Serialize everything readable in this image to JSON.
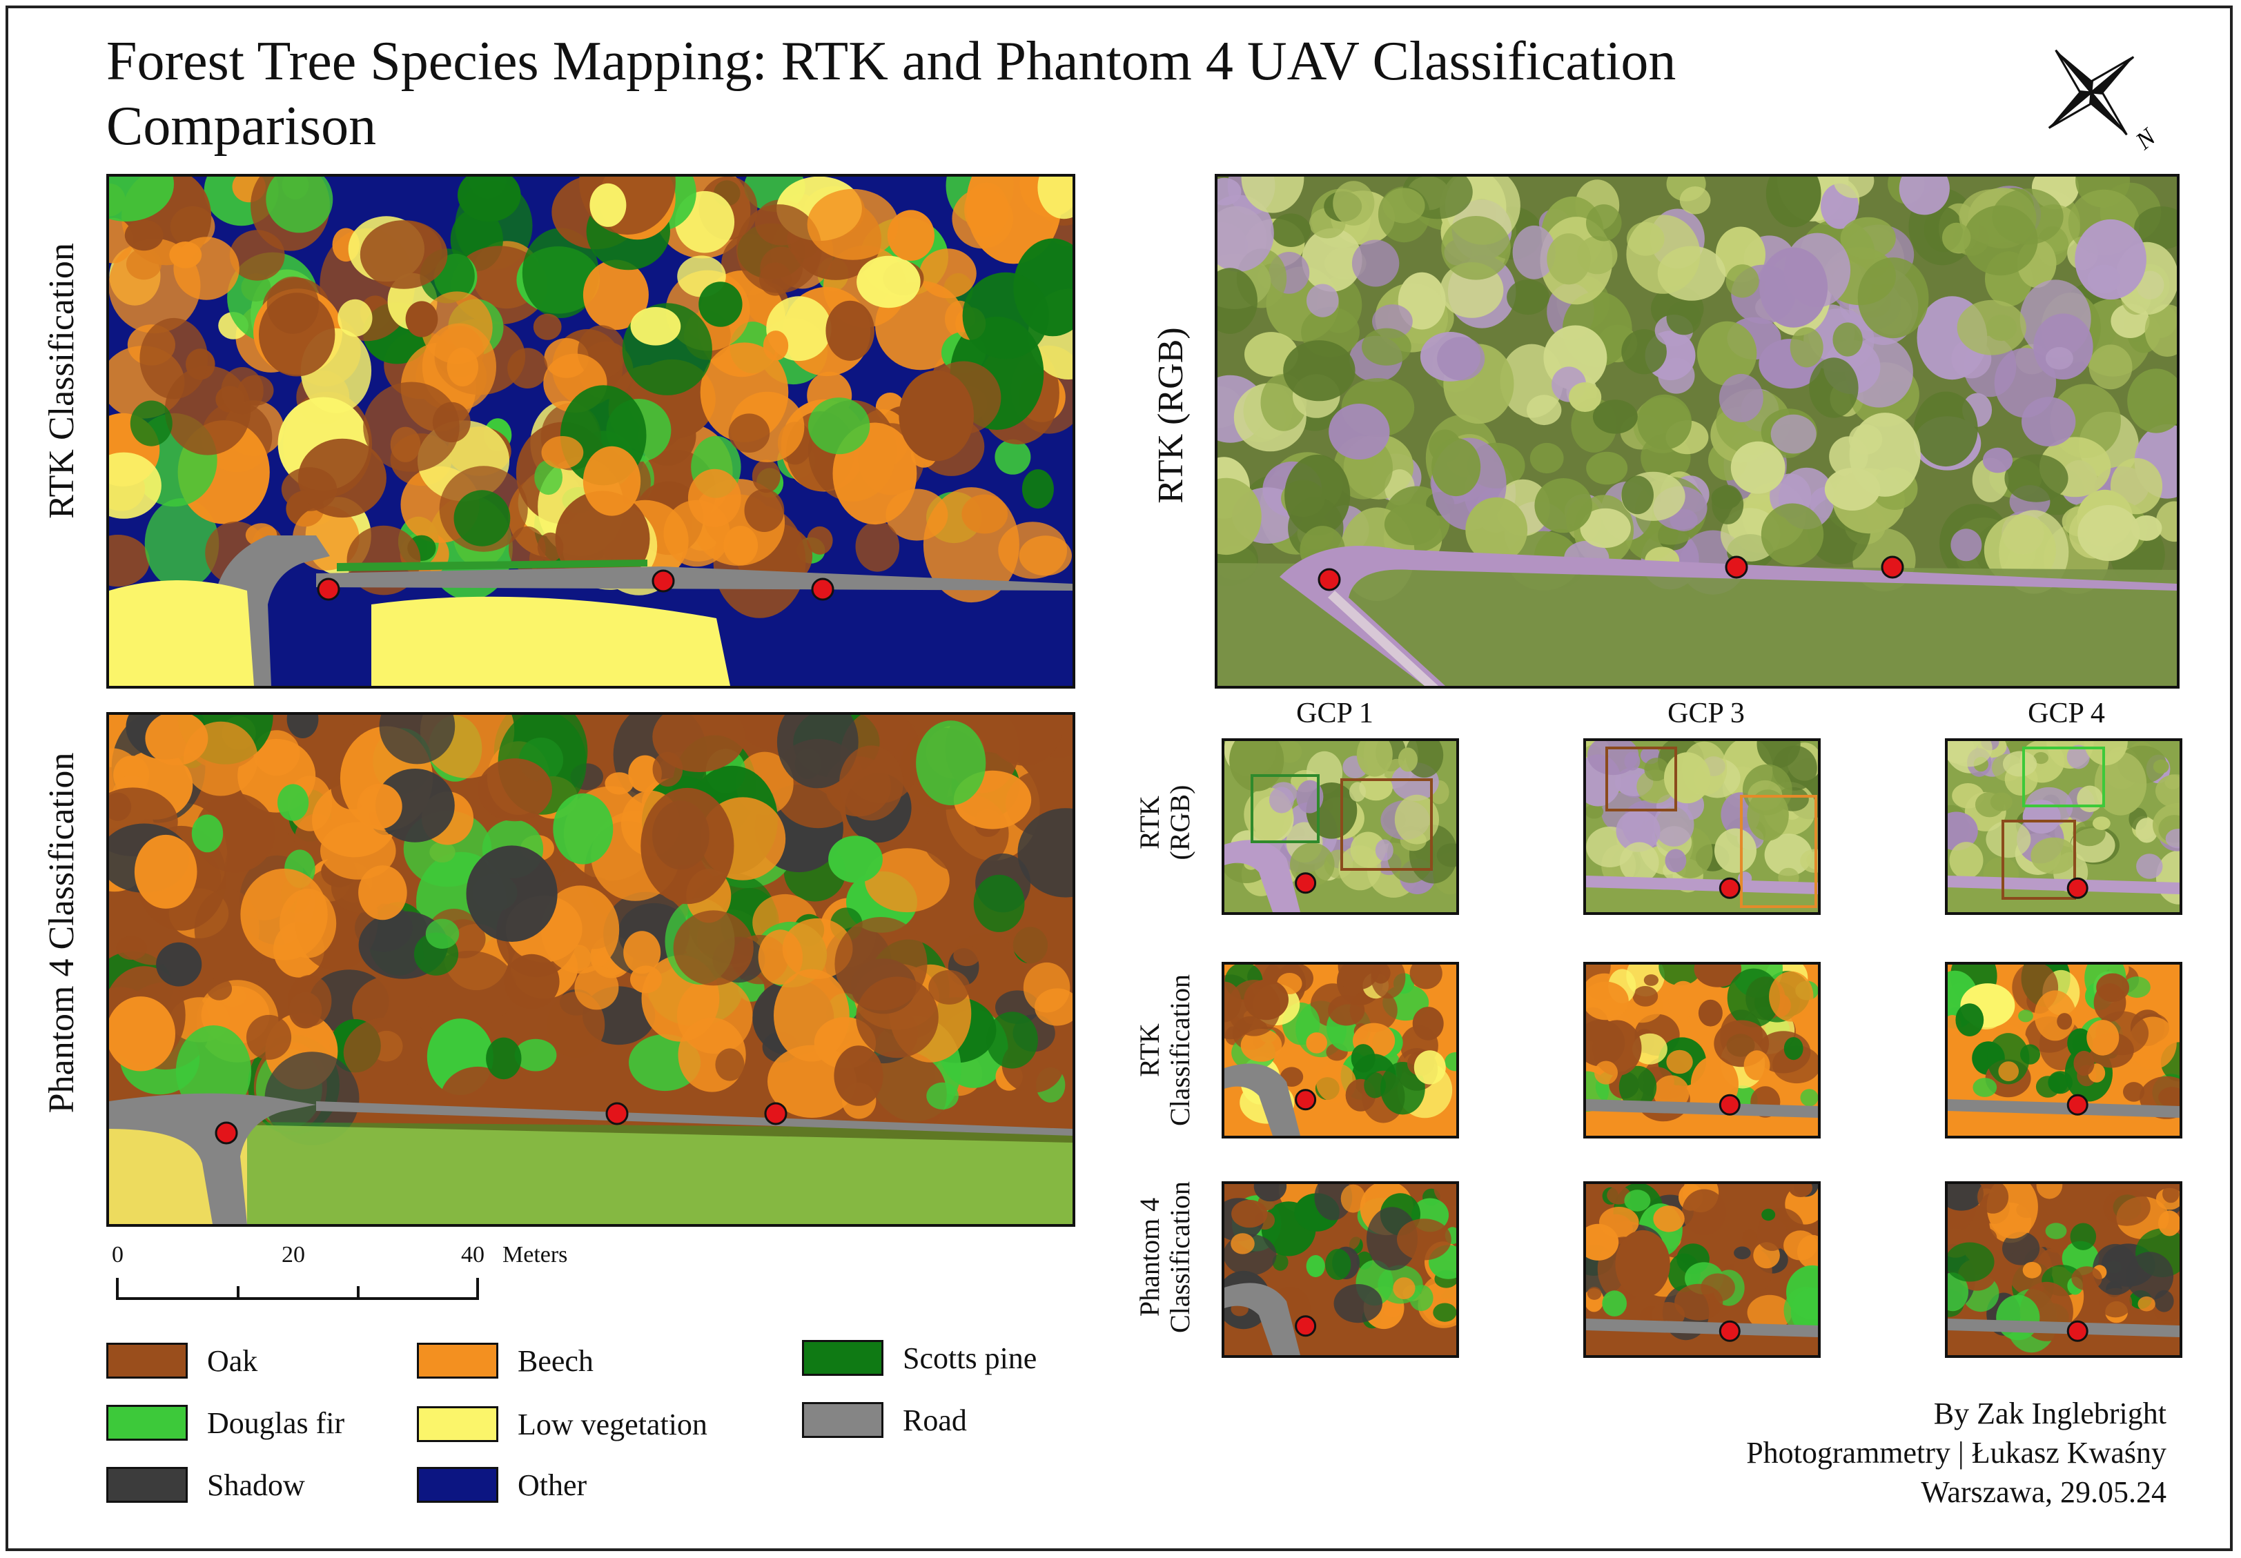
{
  "title": "Forest Tree Species Mapping: RTK and Phantom 4 UAV Classification Comparison",
  "panels": {
    "rtk_classification": "RTK Classification",
    "phantom_classification": "Phantom 4 Classification",
    "rtk_rgb": "RTK (RGB)"
  },
  "gcp_headers": [
    "GCP 1",
    "GCP 3",
    "GCP 4"
  ],
  "row_labels": {
    "rtk_rgb": "RTK\n(RGB)",
    "rtk_class": "RTK\nClassification",
    "phantom_class": "Phantom 4\nClassification"
  },
  "scale_bar": {
    "ticks": [
      "0",
      "20",
      "40"
    ],
    "unit": "Meters"
  },
  "legend": [
    {
      "label": "Oak",
      "color": "#9a4e1c"
    },
    {
      "label": "Beech",
      "color": "#f39020"
    },
    {
      "label": "Scotts pine",
      "color": "#0f7a14"
    },
    {
      "label": "Douglas fir",
      "color": "#3dc93a"
    },
    {
      "label": "Low vegetation",
      "color": "#fbf56a"
    },
    {
      "label": "Road",
      "color": "#858585"
    },
    {
      "label": "Shadow",
      "color": "#3c3c3c"
    },
    {
      "label": "Other",
      "color": "#0c1582"
    }
  ],
  "credits": {
    "author": "By Zak Inglebright",
    "course": "Photogrammetry | Łukasz Kwaśny",
    "place_date": "Warszawa, 29.05.24"
  },
  "north_arrow": {
    "label": "N",
    "icon": "north-arrow-icon"
  },
  "marker_color": "#e3141a"
}
